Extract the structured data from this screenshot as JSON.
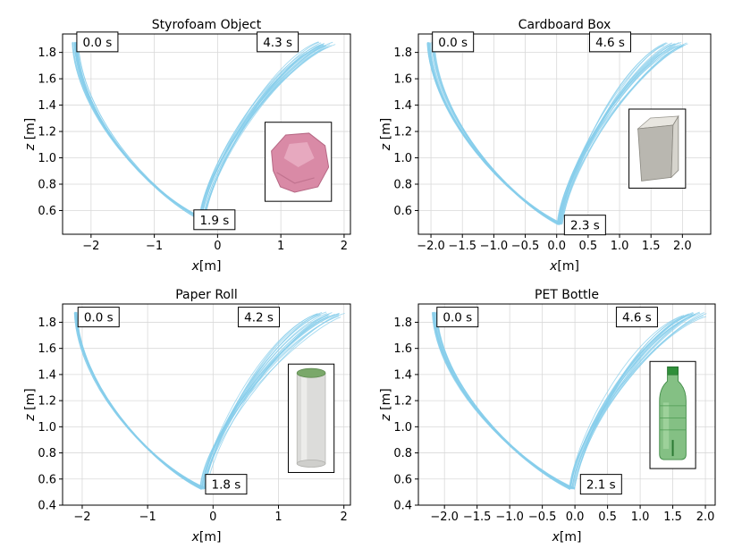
{
  "chart_data": [
    {
      "type": "line",
      "title": "Styrofoam Object",
      "xlabel_prefix": "x",
      "xlabel_unit": "[m]",
      "ylabel_prefix": "z",
      "ylabel_unit": "[m]",
      "xlim": [
        -2.45,
        2.1
      ],
      "ylim": [
        0.42,
        1.94
      ],
      "xticks": [
        -2,
        -1,
        0,
        1,
        2
      ],
      "xtick_labels": [
        "−2",
        "−1",
        "0",
        "1",
        "2"
      ],
      "yticks": [
        0.6,
        0.8,
        1.0,
        1.2,
        1.4,
        1.6,
        1.8
      ],
      "ytick_labels": [
        "0.6",
        "0.8",
        "1.0",
        "1.2",
        "1.4",
        "1.6",
        "1.8"
      ],
      "grid": true,
      "series_color": "#87ceeb",
      "trajectory": {
        "start": [
          -2.25,
          1.88
        ],
        "bottom": [
          -0.25,
          0.53
        ],
        "end": [
          1.7,
          1.88
        ],
        "start_spread": 0.1,
        "end_spread": 0.35,
        "count": 20
      },
      "annotations": [
        {
          "text": "0.0 s",
          "x": -1.9,
          "y": 1.88
        },
        {
          "text": "4.3 s",
          "x": 0.95,
          "y": 1.88
        },
        {
          "text": "1.9 s",
          "x": -0.05,
          "y": 0.53
        }
      ],
      "inset": {
        "name": "styrofoam-object",
        "x0": 0.75,
        "x1": 1.8,
        "y0": 0.67,
        "y1": 1.27
      }
    },
    {
      "type": "line",
      "title": "Cardboard Box",
      "xlabel_prefix": "x",
      "xlabel_unit": "[m]",
      "ylabel_prefix": "z",
      "ylabel_unit": "[m]",
      "xlim": [
        -2.2,
        2.45
      ],
      "ylim": [
        0.42,
        1.94
      ],
      "xticks": [
        -2.0,
        -1.5,
        -1.0,
        -0.5,
        0.0,
        0.5,
        1.0,
        1.5,
        2.0
      ],
      "xtick_labels": [
        "−2.0",
        "−1.5",
        "−1.0",
        "−0.5",
        "0.0",
        "0.5",
        "1.0",
        "1.5",
        "2.0"
      ],
      "yticks": [
        0.6,
        0.8,
        1.0,
        1.2,
        1.4,
        1.6,
        1.8
      ],
      "ytick_labels": [
        "0.6",
        "0.8",
        "1.0",
        "1.2",
        "1.4",
        "1.6",
        "1.8"
      ],
      "grid": true,
      "series_color": "#87ceeb",
      "trajectory": {
        "start": [
          -2.0,
          1.88
        ],
        "bottom": [
          0.05,
          0.49
        ],
        "end": [
          1.9,
          1.88
        ],
        "start_spread": 0.12,
        "end_spread": 0.4,
        "count": 20
      },
      "annotations": [
        {
          "text": "0.0 s",
          "x": -1.65,
          "y": 1.88
        },
        {
          "text": "4.6 s",
          "x": 0.85,
          "y": 1.88
        },
        {
          "text": "2.3 s",
          "x": 0.45,
          "y": 0.49
        }
      ],
      "inset": {
        "name": "cardboard-box",
        "x0": 1.15,
        "x1": 2.05,
        "y0": 0.77,
        "y1": 1.37
      }
    },
    {
      "type": "line",
      "title": "Paper Roll",
      "xlabel_prefix": "x",
      "xlabel_unit": "[m]",
      "ylabel_prefix": "z",
      "ylabel_unit": "[m]",
      "xlim": [
        -2.3,
        2.1
      ],
      "ylim": [
        0.4,
        1.94
      ],
      "xticks": [
        -2,
        -1,
        0,
        1,
        2
      ],
      "xtick_labels": [
        "−2",
        "−1",
        "0",
        "1",
        "2"
      ],
      "yticks": [
        0.4,
        0.6,
        0.8,
        1.0,
        1.2,
        1.4,
        1.6,
        1.8
      ],
      "ytick_labels": [
        "0.4",
        "0.6",
        "0.8",
        "1.0",
        "1.2",
        "1.4",
        "1.6",
        "1.8"
      ],
      "grid": true,
      "series_color": "#87ceeb",
      "trajectory": {
        "start": [
          -2.1,
          1.88
        ],
        "bottom": [
          -0.15,
          0.52
        ],
        "end": [
          1.8,
          1.88
        ],
        "start_spread": 0.04,
        "end_spread": 0.45,
        "count": 20
      },
      "annotations": [
        {
          "text": "0.0 s",
          "x": -1.75,
          "y": 1.84
        },
        {
          "text": "4.2 s",
          "x": 0.7,
          "y": 1.84
        },
        {
          "text": "1.8 s",
          "x": 0.2,
          "y": 0.56
        }
      ],
      "inset": {
        "name": "paper-roll",
        "x0": 1.15,
        "x1": 1.85,
        "y0": 0.65,
        "y1": 1.48
      }
    },
    {
      "type": "line",
      "title": "PET Bottle",
      "xlabel_prefix": "x",
      "xlabel_unit": "[m]",
      "ylabel_prefix": "z",
      "ylabel_unit": "[m]",
      "xlim": [
        -2.4,
        2.15
      ],
      "ylim": [
        0.4,
        1.94
      ],
      "xticks": [
        -2.0,
        -1.5,
        -1.0,
        -0.5,
        0.0,
        0.5,
        1.0,
        1.5,
        2.0
      ],
      "xtick_labels": [
        "−2.0",
        "−1.5",
        "−1.0",
        "−0.5",
        "0.0",
        "0.5",
        "1.0",
        "1.5",
        "2.0"
      ],
      "yticks": [
        0.4,
        0.6,
        0.8,
        1.0,
        1.2,
        1.4,
        1.6,
        1.8
      ],
      "ytick_labels": [
        "0.4",
        "0.6",
        "0.8",
        "1.0",
        "1.2",
        "1.4",
        "1.6",
        "1.8"
      ],
      "grid": true,
      "series_color": "#87ceeb",
      "trajectory": {
        "start": [
          -2.15,
          1.88
        ],
        "bottom": [
          -0.05,
          0.52
        ],
        "end": [
          1.8,
          1.88
        ],
        "start_spread": 0.08,
        "end_spread": 0.5,
        "count": 20
      },
      "annotations": [
        {
          "text": "0.0 s",
          "x": -1.8,
          "y": 1.84
        },
        {
          "text": "4.6 s",
          "x": 0.95,
          "y": 1.84
        },
        {
          "text": "2.1 s",
          "x": 0.4,
          "y": 0.56
        }
      ],
      "inset": {
        "name": "pet-bottle",
        "x0": 1.15,
        "x1": 1.85,
        "y0": 0.68,
        "y1": 1.5
      }
    }
  ]
}
